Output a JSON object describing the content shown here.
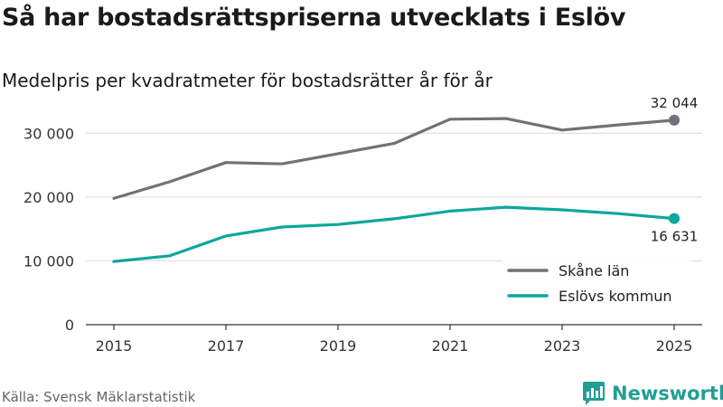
{
  "title": "Så har bostadsrättspriserna utvecklats i Eslöv",
  "subtitle": "Medelpris per kvadratmeter för bostadsrätter år för år",
  "source": "Källa: Svensk Mäklarstatistik",
  "brand": {
    "name": "Newsworthy",
    "icon": "bar-chart-logo-icon"
  },
  "colors": {
    "skane": "#737078",
    "eslov": "#0aa79b",
    "grid": "#d9d9d9",
    "axis": "#333333",
    "brand": "#229e93"
  },
  "chart_data": {
    "type": "line",
    "title": "Så har bostadsrättspriserna utvecklats i Eslöv",
    "subtitle": "Medelpris per kvadratmeter för bostadsrätter år för år",
    "xlabel": "",
    "ylabel": "",
    "x": [
      2015,
      2016,
      2017,
      2018,
      2019,
      2020,
      2021,
      2022,
      2023,
      2024,
      2025
    ],
    "xticks": [
      2015,
      2017,
      2019,
      2021,
      2023,
      2025
    ],
    "xtick_labels": [
      "2015",
      "2017",
      "2019",
      "2021",
      "2023",
      "2025"
    ],
    "xlim": [
      2014.5,
      2025.5
    ],
    "ylim": [
      0,
      35000
    ],
    "yticks": [
      0,
      10000,
      20000,
      30000
    ],
    "ytick_labels": [
      "0",
      "10 000",
      "20 000",
      "30 000"
    ],
    "grid": true,
    "legend_position": "bottom-right",
    "series": [
      {
        "name": "Skåne län",
        "color": "#737078",
        "values": [
          19800,
          22400,
          25400,
          25200,
          26800,
          28400,
          32200,
          32300,
          30500,
          31300,
          32044
        ],
        "end_label": "32 044"
      },
      {
        "name": "Eslövs kommun",
        "color": "#0aa79b",
        "values": [
          9900,
          10800,
          13900,
          15300,
          15700,
          16600,
          17800,
          18400,
          18000,
          17400,
          16631
        ],
        "end_label": "16 631"
      }
    ]
  }
}
